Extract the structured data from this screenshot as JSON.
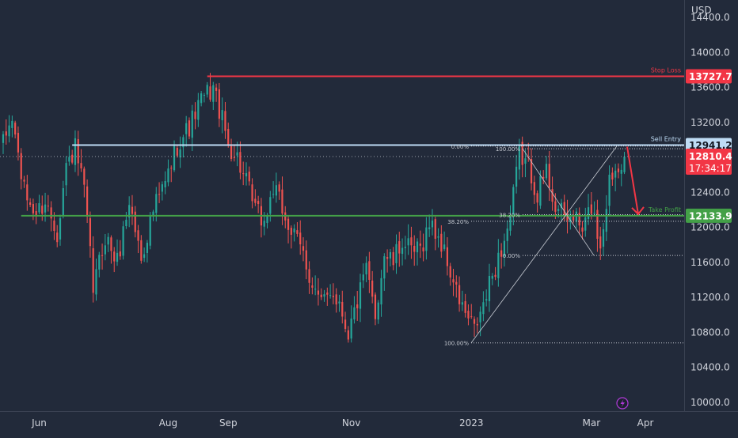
{
  "chart": {
    "currency": "USD",
    "price_axis": {
      "min": 9900,
      "max": 14600,
      "ticks": [
        {
          "value": 14400,
          "label": "14400.0"
        },
        {
          "value": 14000,
          "label": "14000.0"
        },
        {
          "value": 13600,
          "label": "13600.0"
        },
        {
          "value": 13200,
          "label": "13200.0"
        },
        {
          "value": 12400,
          "label": "12400.0"
        },
        {
          "value": 12000,
          "label": "12000.0"
        },
        {
          "value": 11600,
          "label": "11600.0"
        },
        {
          "value": 11200,
          "label": "11200.0"
        },
        {
          "value": 10800,
          "label": "10800.0"
        },
        {
          "value": 10400,
          "label": "10400.0"
        },
        {
          "value": 10000,
          "label": "10000.0"
        }
      ]
    },
    "time_axis": {
      "labels": [
        {
          "label": "Jun",
          "bar": 12
        },
        {
          "label": "Aug",
          "bar": 55
        },
        {
          "label": "Sep",
          "bar": 75
        },
        {
          "label": "Nov",
          "bar": 116
        },
        {
          "label": "2023",
          "bar": 156
        },
        {
          "label": "Mar",
          "bar": 196
        },
        {
          "label": "Apr",
          "bar": 214
        }
      ]
    },
    "levels": {
      "stop_loss": {
        "label": "Stop Loss",
        "value": 13727.7,
        "badge": "13727.7",
        "color": "#f23645",
        "from_bar": 68
      },
      "sell_entry": {
        "label": "Sell Entry",
        "value": 12941.2,
        "badge": "12941.2",
        "color": "#bfdcf5",
        "from_bar": 23
      },
      "take_profit": {
        "label": "Take Profit",
        "value": 12133.9,
        "badge": "12133.9",
        "color": "#43a047",
        "from_bar": 6
      }
    },
    "last_price": {
      "value": 12810.4,
      "label": "12810.4",
      "countdown": "17:34:17",
      "color": "#f23645"
    },
    "fib_labels": {
      "top_zero": "0.00%",
      "top_hundred": "100.00%",
      "r382_right": "38.20%",
      "r382_left": "38.20%",
      "bottom_zero": "0.00%",
      "bottom_hundred": "100.00%"
    },
    "colors": {
      "up": "#26a69a",
      "down": "#ef5350",
      "background": "#222a3a",
      "axis_text": "#d1d4dc"
    }
  },
  "chart_data": {
    "type": "candlestick",
    "symbol_currency": "USD",
    "x_axis_labels": [
      "Jun",
      "Aug",
      "Sep",
      "Nov",
      "2023",
      "Mar",
      "Apr"
    ],
    "y_ticks": [
      14400,
      14000,
      13600,
      13200,
      12400,
      12000,
      11600,
      11200,
      10800,
      10400,
      10000
    ],
    "close_path_anchors": [
      [
        0,
        12950
      ],
      [
        3,
        13250
      ],
      [
        7,
        12400
      ],
      [
        11,
        12150
      ],
      [
        14,
        12300
      ],
      [
        18,
        11950
      ],
      [
        21,
        12700
      ],
      [
        24,
        12900
      ],
      [
        27,
        12400
      ],
      [
        30,
        11300
      ],
      [
        34,
        11900
      ],
      [
        38,
        11600
      ],
      [
        42,
        12300
      ],
      [
        46,
        11650
      ],
      [
        50,
        12200
      ],
      [
        54,
        12500
      ],
      [
        58,
        12950
      ],
      [
        62,
        13150
      ],
      [
        66,
        13450
      ],
      [
        70,
        13600
      ],
      [
        72,
        13350
      ],
      [
        75,
        12950
      ],
      [
        78,
        12800
      ],
      [
        81,
        12500
      ],
      [
        84,
        12200
      ],
      [
        87,
        12050
      ],
      [
        90,
        12450
      ],
      [
        93,
        12200
      ],
      [
        96,
        11950
      ],
      [
        100,
        11700
      ],
      [
        103,
        11350
      ],
      [
        106,
        11100
      ],
      [
        109,
        11300
      ],
      [
        112,
        11150
      ],
      [
        115,
        10800
      ],
      [
        118,
        11150
      ],
      [
        121,
        11500
      ],
      [
        124,
        11000
      ],
      [
        127,
        11700
      ],
      [
        130,
        11600
      ],
      [
        133,
        11850
      ],
      [
        136,
        11700
      ],
      [
        139,
        11750
      ],
      [
        142,
        12050
      ],
      [
        145,
        11900
      ],
      [
        148,
        11600
      ],
      [
        151,
        11250
      ],
      [
        154,
        11000
      ],
      [
        157,
        10820
      ],
      [
        160,
        11100
      ],
      [
        163,
        11450
      ],
      [
        166,
        11750
      ],
      [
        169,
        12100
      ],
      [
        172,
        12850
      ],
      [
        175,
        12700
      ],
      [
        178,
        12400
      ],
      [
        181,
        12650
      ],
      [
        184,
        12250
      ],
      [
        187,
        12100
      ],
      [
        190,
        12150
      ],
      [
        193,
        11950
      ],
      [
        196,
        12250
      ],
      [
        199,
        11800
      ],
      [
        202,
        12550
      ],
      [
        205,
        12750
      ],
      [
        207,
        12810.4
      ]
    ],
    "horizontal_levels": [
      {
        "name": "Stop Loss",
        "value": 13727.7
      },
      {
        "name": "Sell Entry",
        "value": 12941.2
      },
      {
        "name": "Take Profit",
        "value": 12133.9
      }
    ],
    "last_price": 12810.4,
    "fibonacci_retracements": [
      {
        "levels": [
          "0.00%",
          "38.20%",
          "100.00%"
        ],
        "from_price": 10680,
        "to_price": 12930
      },
      {
        "levels": [
          "0.00%",
          "38.20%",
          "100.00%"
        ],
        "from_price": 12900,
        "to_price": 11680
      }
    ],
    "grid": false
  }
}
